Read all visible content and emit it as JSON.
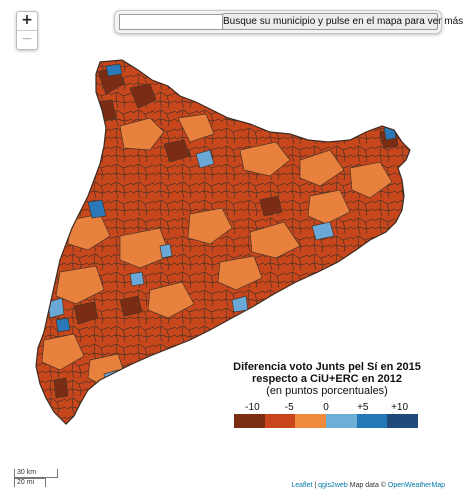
{
  "map": {
    "zoom_in_label": "+",
    "zoom_out_label": "−",
    "search": {
      "placeholder": "",
      "button_label": "Busque su municipio y pulse en el mapa para ver más"
    },
    "region_colors": {
      "land_border": "#3d2a20",
      "municipality_border": "#4a3426",
      "dominant": "#c8461c",
      "secondary": "#e8803e",
      "dark": "#7a2d14",
      "blue_light": "#6aa8d8",
      "blue_mid": "#2a78b8"
    },
    "legend": {
      "title_line1": "Diferencia voto Junts pel Sí en 2015",
      "title_line2": "respecto a CiU+ERC en 2012",
      "title_line3": "(en puntos porcentuales)",
      "ticks": [
        "-10",
        "-5",
        "0",
        "+5",
        "+10"
      ],
      "colors": [
        "#7b2e14",
        "#c9451b",
        "#f08a3c",
        "#6baed6",
        "#2379b8",
        "#1f4a7a"
      ]
    },
    "scale": {
      "km": "30 km",
      "mi": "20 mi"
    },
    "attribution": {
      "leaflet": "Leaflet",
      "separator": "|",
      "qgis": "qgis2web",
      "map_data": "Map data ©",
      "owm": "OpenWeatherMap"
    }
  }
}
